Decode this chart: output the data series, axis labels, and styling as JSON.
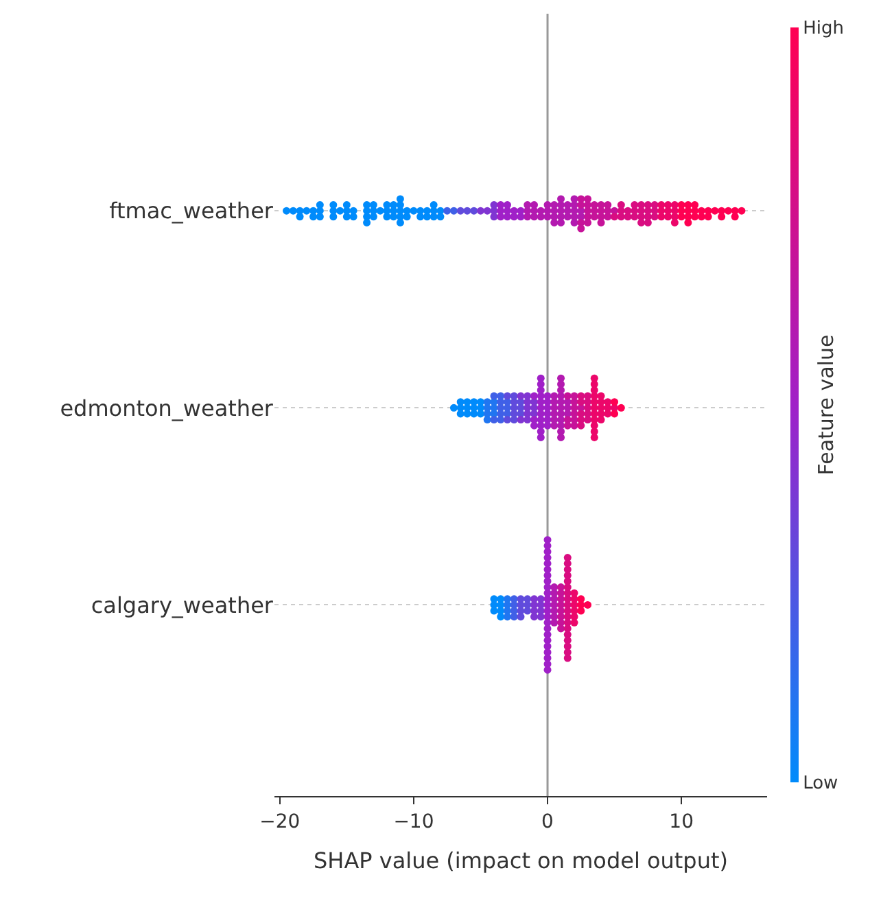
{
  "chart_data": {
    "type": "scatter",
    "orientation": "horizontal",
    "categories": [
      "ftmac_weather",
      "edmonton_weather",
      "calgary_weather"
    ],
    "xlabel": "SHAP value (impact on model output)",
    "clabel": "Feature value",
    "xlim": [
      -20.4,
      16.4
    ],
    "xticks": [
      -20,
      -10,
      0,
      10
    ],
    "clim": [
      0,
      1
    ],
    "cticks": [
      {
        "value": 0,
        "label": "Low"
      },
      {
        "value": 1,
        "label": "High"
      }
    ],
    "grid": "y",
    "marker": "circle",
    "ref_lines": [
      {
        "axis": "x",
        "value": 0,
        "color": "#999999"
      }
    ],
    "series": [
      {
        "x": [
          "ftmac_weather",
          "ftmac_weather",
          "ftmac_weather",
          "ftmac_weather",
          "ftmac_weather",
          "ftmac_weather",
          "ftmac_weather",
          "ftmac_weather",
          "ftmac_weather",
          "ftmac_weather",
          "ftmac_weather",
          "ftmac_weather",
          "ftmac_weather",
          "ftmac_weather",
          "ftmac_weather",
          "ftmac_weather",
          "ftmac_weather",
          "ftmac_weather",
          "ftmac_weather",
          "ftmac_weather",
          "ftmac_weather",
          "ftmac_weather",
          "ftmac_weather",
          "ftmac_weather",
          "ftmac_weather",
          "ftmac_weather",
          "ftmac_weather",
          "ftmac_weather",
          "ftmac_weather",
          "ftmac_weather",
          "ftmac_weather",
          "ftmac_weather",
          "ftmac_weather",
          "ftmac_weather",
          "ftmac_weather",
          "ftmac_weather",
          "ftmac_weather",
          "ftmac_weather",
          "ftmac_weather",
          "ftmac_weather",
          "ftmac_weather",
          "ftmac_weather",
          "ftmac_weather",
          "ftmac_weather",
          "ftmac_weather",
          "ftmac_weather",
          "ftmac_weather",
          "ftmac_weather",
          "ftmac_weather",
          "ftmac_weather",
          "ftmac_weather",
          "ftmac_weather",
          "ftmac_weather",
          "ftmac_weather",
          "ftmac_weather",
          "ftmac_weather",
          "ftmac_weather",
          "ftmac_weather",
          "ftmac_weather",
          "ftmac_weather",
          "ftmac_weather",
          "ftmac_weather",
          "ftmac_weather",
          "ftmac_weather",
          "ftmac_weather",
          "ftmac_weather",
          "ftmac_weather",
          "ftmac_weather",
          "ftmac_weather",
          "ftmac_weather",
          "ftmac_weather",
          "ftmac_weather",
          "ftmac_weather",
          "ftmac_weather",
          "ftmac_weather",
          "ftmac_weather",
          "ftmac_weather",
          "ftmac_weather",
          "ftmac_weather",
          "ftmac_weather",
          "ftmac_weather",
          "ftmac_weather",
          "ftmac_weather",
          "ftmac_weather",
          "ftmac_weather",
          "ftmac_weather",
          "ftmac_weather",
          "ftmac_weather",
          "ftmac_weather",
          "ftmac_weather",
          "ftmac_weather",
          "ftmac_weather",
          "ftmac_weather",
          "ftmac_weather",
          "ftmac_weather",
          "ftmac_weather",
          "ftmac_weather",
          "ftmac_weather",
          "ftmac_weather",
          "ftmac_weather",
          "ftmac_weather",
          "ftmac_weather",
          "ftmac_weather",
          "ftmac_weather",
          "ftmac_weather",
          "ftmac_weather",
          "ftmac_weather",
          "ftmac_weather",
          "ftmac_weather",
          "ftmac_weather",
          "ftmac_weather",
          "ftmac_weather",
          "ftmac_weather",
          "ftmac_weather",
          "ftmac_weather",
          "ftmac_weather",
          "ftmac_weather",
          "ftmac_weather",
          "ftmac_weather",
          "ftmac_weather",
          "ftmac_weather",
          "ftmac_weather",
          "ftmac_weather",
          "ftmac_weather",
          "ftmac_weather",
          "ftmac_weather",
          "ftmac_weather",
          "ftmac_weather",
          "ftmac_weather",
          "ftmac_weather",
          "ftmac_weather",
          "ftmac_weather",
          "ftmac_weather",
          "ftmac_weather",
          "ftmac_weather",
          "ftmac_weather",
          "ftmac_weather",
          "ftmac_weather",
          "ftmac_weather",
          "ftmac_weather",
          "ftmac_weather",
          "ftmac_weather",
          "ftmac_weather",
          "ftmac_weather",
          "ftmac_weather",
          "ftmac_weather",
          "ftmac_weather",
          "ftmac_weather",
          "ftmac_weather",
          "ftmac_weather",
          "ftmac_weather",
          "ftmac_weather",
          "ftmac_weather",
          "ftmac_weather",
          "ftmac_weather",
          "ftmac_weather",
          "ftmac_weather",
          "ftmac_weather",
          "ftmac_weather",
          "ftmac_weather",
          "ftmac_weather",
          "ftmac_weather",
          "ftmac_weather",
          "ftmac_weather",
          "ftmac_weather",
          "ftmac_weather",
          "ftmac_weather",
          "ftmac_weather",
          "ftmac_weather",
          "ftmac_weather",
          "ftmac_weather"
        ],
        "values": [
          -19.5,
          -19,
          -18.5,
          -18.5,
          -18,
          -17.5,
          -17.5,
          -17,
          -17,
          -17,
          -16,
          -16,
          -16,
          -15.5,
          -15,
          -15,
          -15,
          -14.5,
          -14.5,
          -13.5,
          -13.5,
          -13.5,
          -13.5,
          -13,
          -13,
          -13,
          -12.5,
          -12,
          -12,
          -12,
          -11.5,
          -11.5,
          -11.5,
          -11,
          -11,
          -11,
          -11,
          -11,
          -10.5,
          -10.5,
          -10,
          -9.5,
          -9.5,
          -9,
          -9,
          -8.5,
          -8.5,
          -8.5,
          -8,
          -8,
          -7.5,
          -7,
          -6.5,
          -6,
          -5.5,
          -5,
          -4.5,
          -4,
          -4,
          -4,
          -3.5,
          -3.5,
          -3.5,
          -3,
          -3,
          -3,
          -2.5,
          -2.5,
          -2,
          -2,
          -1.5,
          -1.5,
          -1.5,
          -1,
          -1,
          -1,
          -0.5,
          -0.5,
          0,
          0,
          0,
          0.5,
          0.5,
          0.5,
          0.5,
          1,
          1,
          1,
          1,
          1,
          1.5,
          1.5,
          1.5,
          2,
          2,
          2,
          2,
          2,
          2.5,
          2.5,
          2.5,
          2.5,
          2.5,
          2.5,
          3,
          3,
          3,
          3,
          3,
          3.5,
          3.5,
          3.5,
          4,
          4,
          4,
          4,
          4.5,
          4.5,
          4.5,
          5,
          5,
          5.5,
          5.5,
          5.5,
          6,
          6,
          6.5,
          6.5,
          6.5,
          7,
          7,
          7,
          7,
          7.5,
          7.5,
          7.5,
          7.5,
          8,
          8,
          8,
          8.5,
          8.5,
          8.5,
          9,
          9,
          9,
          9.5,
          9.5,
          9.5,
          9.5,
          10,
          10,
          10,
          10.5,
          10.5,
          10.5,
          10.5,
          11,
          11,
          11,
          11.5,
          11.5,
          12,
          12,
          12.5,
          13,
          13,
          13.5,
          14,
          14,
          14.5
        ],
        "colors": [
          "#008bfb",
          "#008bfb",
          "#008bfb",
          "#008bfb",
          "#008bfb",
          "#008bfb",
          "#008bfb",
          "#008bfb",
          "#008bfb",
          "#008bfb",
          "#008bfb",
          "#008bfb",
          "#008bfb",
          "#008bfb",
          "#008bfb",
          "#008bfb",
          "#008bfb",
          "#008bfb",
          "#008bfb",
          "#008bfb",
          "#008bfb",
          "#008bfb",
          "#008bfb",
          "#008bfb",
          "#008bfb",
          "#008bfb",
          "#008bfb",
          "#008bfb",
          "#008bfb",
          "#008bfb",
          "#008bfb",
          "#008bfb",
          "#008bfb",
          "#008bfb",
          "#008bfb",
          "#008bfb",
          "#008bfb",
          "#008bfb",
          "#008bfb",
          "#008bfb",
          "#008bfb",
          "#008bfb",
          "#008bfb",
          "#008bfb",
          "#008bfb",
          "#008bfb",
          "#008bfb",
          "#008bfb",
          "#008bfb",
          "#008bfb",
          "#4060e7",
          "#4060e7",
          "#604bdc",
          "#604bdc",
          "#604bdc",
          "#8035d2",
          "#8035d2",
          "#8035d2",
          "#8035d2",
          "#8035d2",
          "#a020c8",
          "#a020c8",
          "#a020c8",
          "#a020c8",
          "#a020c8",
          "#a020c8",
          "#a020c8",
          "#a020c8",
          "#a020c8",
          "#a020c8",
          "#b31ab0",
          "#b31ab0",
          "#b31ab0",
          "#b31ab0",
          "#b31ab0",
          "#b31ab0",
          "#b31ab0",
          "#b31ab0",
          "#b31ab0",
          "#b31ab0",
          "#b31ab0",
          "#b31ab0",
          "#b31ab0",
          "#b31ab0",
          "#b31ab0",
          "#b31ab0",
          "#b31ab0",
          "#b31ab0",
          "#b31ab0",
          "#b31ab0",
          "#b31ab0",
          "#b31ab0",
          "#b31ab0",
          "#b31ab0",
          "#b31ab0",
          "#b31ab0",
          "#b31ab0",
          "#b31ab0",
          "#b31ab0",
          "#b31ab0",
          "#c61399",
          "#c61399",
          "#c61399",
          "#c61399",
          "#c61399",
          "#c61399",
          "#c61399",
          "#c61399",
          "#c61399",
          "#c61399",
          "#c61399",
          "#c61399",
          "#c61399",
          "#c61399",
          "#c61399",
          "#c61399",
          "#c61399",
          "#c61399",
          "#c61399",
          "#c61399",
          "#d90d81",
          "#d90d81",
          "#d90d81",
          "#d90d81",
          "#d90d81",
          "#d90d81",
          "#d90d81",
          "#d90d81",
          "#d90d81",
          "#d90d81",
          "#d90d81",
          "#d90d81",
          "#d90d81",
          "#d90d81",
          "#d90d81",
          "#d90d81",
          "#d90d81",
          "#d90d81",
          "#d90d81",
          "#d90d81",
          "#ec066a",
          "#ec066a",
          "#ec066a",
          "#ec066a",
          "#ec066a",
          "#ec066a",
          "#ec066a",
          "#ec066a",
          "#ec066a",
          "#ec066a",
          "#ff0052",
          "#ff0052",
          "#ff0052",
          "#ff0052",
          "#ff0052",
          "#ff0052",
          "#ff0052",
          "#ff0052",
          "#ff0052",
          "#ff0052",
          "#ff0052",
          "#ff0052",
          "#ff0052",
          "#ff0052",
          "#ff0052",
          "#ff0052",
          "#ff0052",
          "#ff0052",
          "#ff0052",
          "#ff0052",
          "#ff0052"
        ],
        "cvalues": [
          0,
          0,
          0,
          0,
          0,
          0,
          0,
          0,
          0,
          0,
          0,
          0,
          0,
          0,
          0,
          0,
          0,
          0,
          0,
          0,
          0,
          0,
          0,
          0,
          0,
          0,
          0,
          0,
          0,
          0,
          0,
          0,
          0,
          0,
          0,
          0,
          0,
          0,
          0,
          0,
          0,
          0,
          0,
          0,
          0,
          0,
          0,
          0,
          0,
          0,
          0.2,
          0.2,
          0.3,
          0.3,
          0.3,
          0.4,
          0.4,
          0.4,
          0.4,
          0.4,
          0.5,
          0.5,
          0.5,
          0.5,
          0.5,
          0.5,
          0.5,
          0.5,
          0.5,
          0.5,
          0.6,
          0.6,
          0.6,
          0.6,
          0.6,
          0.6,
          0.6,
          0.6,
          0.6,
          0.6,
          0.6,
          0.6,
          0.6,
          0.6,
          0.6,
          0.6,
          0.6,
          0.6,
          0.6,
          0.6,
          0.6,
          0.6,
          0.6,
          0.6,
          0.6,
          0.6,
          0.6,
          0.6,
          0.6,
          0.6,
          0.7,
          0.7,
          0.7,
          0.7,
          0.7,
          0.7,
          0.7,
          0.7,
          0.7,
          0.7,
          0.7,
          0.7,
          0.7,
          0.7,
          0.7,
          0.7,
          0.7,
          0.7,
          0.7,
          0.7,
          0.8,
          0.8,
          0.8,
          0.8,
          0.8,
          0.8,
          0.8,
          0.8,
          0.8,
          0.8,
          0.8,
          0.8,
          0.8,
          0.8,
          0.8,
          0.8,
          0.8,
          0.8,
          0.8,
          0.8,
          0.9,
          0.9,
          0.9,
          0.9,
          0.9,
          0.9,
          0.9,
          0.9,
          0.9,
          0.9,
          1,
          1,
          1,
          1,
          1,
          1,
          1,
          1,
          1,
          1,
          1,
          1,
          1,
          1,
          1,
          1,
          1,
          1,
          1,
          1,
          1
        ]
      },
      {
        "x": [
          "edmonton_weather",
          "edmonton_weather",
          "edmonton_weather",
          "edmonton_weather",
          "edmonton_weather",
          "edmonton_weather",
          "edmonton_weather",
          "edmonton_weather",
          "edmonton_weather",
          "edmonton_weather",
          "edmonton_weather",
          "edmonton_weather",
          "edmonton_weather",
          "edmonton_weather",
          "edmonton_weather",
          "edmonton_weather",
          "edmonton_weather",
          "edmonton_weather",
          "edmonton_weather",
          "edmonton_weather",
          "edmonton_weather",
          "edmonton_weather",
          "edmonton_weather",
          "edmonton_weather",
          "edmonton_weather",
          "edmonton_weather",
          "edmonton_weather",
          "edmonton_weather",
          "edmonton_weather",
          "edmonton_weather",
          "edmonton_weather",
          "edmonton_weather",
          "edmonton_weather",
          "edmonton_weather",
          "edmonton_weather",
          "edmonton_weather",
          "edmonton_weather",
          "edmonton_weather",
          "edmonton_weather",
          "edmonton_weather",
          "edmonton_weather",
          "edmonton_weather",
          "edmonton_weather",
          "edmonton_weather",
          "edmonton_weather",
          "edmonton_weather",
          "edmonton_weather",
          "edmonton_weather",
          "edmonton_weather",
          "edmonton_weather",
          "edmonton_weather",
          "edmonton_weather",
          "edmonton_weather",
          "edmonton_weather",
          "edmonton_weather",
          "edmonton_weather",
          "edmonton_weather",
          "edmonton_weather",
          "edmonton_weather",
          "edmonton_weather",
          "edmonton_weather",
          "edmonton_weather",
          "edmonton_weather",
          "edmonton_weather",
          "edmonton_weather",
          "edmonton_weather",
          "edmonton_weather",
          "edmonton_weather",
          "edmonton_weather",
          "edmonton_weather",
          "edmonton_weather",
          "edmonton_weather",
          "edmonton_weather",
          "edmonton_weather",
          "edmonton_weather",
          "edmonton_weather",
          "edmonton_weather",
          "edmonton_weather",
          "edmonton_weather",
          "edmonton_weather",
          "edmonton_weather",
          "edmonton_weather",
          "edmonton_weather",
          "edmonton_weather",
          "edmonton_weather",
          "edmonton_weather",
          "edmonton_weather",
          "edmonton_weather",
          "edmonton_weather",
          "edmonton_weather",
          "edmonton_weather",
          "edmonton_weather",
          "edmonton_weather",
          "edmonton_weather",
          "edmonton_weather",
          "edmonton_weather",
          "edmonton_weather",
          "edmonton_weather",
          "edmonton_weather",
          "edmonton_weather",
          "edmonton_weather",
          "edmonton_weather",
          "edmonton_weather",
          "edmonton_weather",
          "edmonton_weather",
          "edmonton_weather",
          "edmonton_weather",
          "edmonton_weather",
          "edmonton_weather",
          "edmonton_weather",
          "edmonton_weather",
          "edmonton_weather",
          "edmonton_weather",
          "edmonton_weather",
          "edmonton_weather",
          "edmonton_weather",
          "edmonton_weather",
          "edmonton_weather",
          "edmonton_weather",
          "edmonton_weather",
          "edmonton_weather",
          "edmonton_weather",
          "edmonton_weather",
          "edmonton_weather",
          "edmonton_weather",
          "edmonton_weather",
          "edmonton_weather",
          "edmonton_weather",
          "edmonton_weather",
          "edmonton_weather",
          "edmonton_weather",
          "edmonton_weather",
          "edmonton_weather"
        ],
        "values": [
          -7,
          -6.5,
          -6.5,
          -6.5,
          -6,
          -6,
          -6,
          -5.5,
          -5.5,
          -5.5,
          -5,
          -5,
          -5,
          -4.5,
          -4.5,
          -4.5,
          -4.5,
          -4,
          -4,
          -4,
          -4,
          -4,
          -3.5,
          -3.5,
          -3.5,
          -3.5,
          -3.5,
          -3,
          -3,
          -3,
          -3,
          -3,
          -2.5,
          -2.5,
          -2.5,
          -2.5,
          -2.5,
          -2,
          -2,
          -2,
          -2,
          -2,
          -1.5,
          -1.5,
          -1.5,
          -1.5,
          -1.5,
          -1,
          -1,
          -1,
          -1,
          -1,
          -1,
          -0.5,
          -0.5,
          -0.5,
          -0.5,
          -0.5,
          -0.5,
          -0.5,
          -0.5,
          -0.5,
          -0.5,
          -0.5,
          0,
          0,
          0,
          0,
          0,
          0,
          0.5,
          0.5,
          0.5,
          0.5,
          0.5,
          0.5,
          1,
          1,
          1,
          1,
          1,
          1,
          1,
          1,
          1,
          1,
          1,
          1.5,
          1.5,
          1.5,
          1.5,
          1.5,
          1.5,
          2,
          2,
          2,
          2,
          2,
          2,
          2.5,
          2.5,
          2.5,
          2.5,
          2.5,
          2.5,
          3,
          3,
          3,
          3,
          3,
          3.5,
          3.5,
          3.5,
          3.5,
          3.5,
          3.5,
          3.5,
          3.5,
          3.5,
          3.5,
          3.5,
          4,
          4,
          4,
          4,
          4,
          4.5,
          4.5,
          4.5,
          5,
          5,
          5,
          5.5
        ],
        "colors": [
          "#008bfb",
          "#008bfb",
          "#008bfb",
          "#008bfb",
          "#008bfb",
          "#008bfb",
          "#008bfb",
          "#008bfb",
          "#008bfb",
          "#008bfb",
          "#008bfb",
          "#008bfb",
          "#008bfb",
          "#2076f1",
          "#2076f1",
          "#2076f1",
          "#2076f1",
          "#2076f1",
          "#2076f1",
          "#2076f1",
          "#4060e7",
          "#4060e7",
          "#4060e7",
          "#4060e7",
          "#4060e7",
          "#4060e7",
          "#4060e7",
          "#4060e7",
          "#4060e7",
          "#4060e7",
          "#604bdc",
          "#604bdc",
          "#604bdc",
          "#604bdc",
          "#604bdc",
          "#604bdc",
          "#604bdc",
          "#604bdc",
          "#604bdc",
          "#604bdc",
          "#8035d2",
          "#8035d2",
          "#8035d2",
          "#8035d2",
          "#8035d2",
          "#8035d2",
          "#8035d2",
          "#8035d2",
          "#8035d2",
          "#8035d2",
          "#a020c8",
          "#a020c8",
          "#a020c8",
          "#a020c8",
          "#a020c8",
          "#a020c8",
          "#a020c8",
          "#a020c8",
          "#a020c8",
          "#a020c8",
          "#a020c8",
          "#a020c8",
          "#a020c8",
          "#a020c8",
          "#a020c8",
          "#a020c8",
          "#a020c8",
          "#a020c8",
          "#a020c8",
          "#a020c8",
          "#b31ab0",
          "#b31ab0",
          "#b31ab0",
          "#b31ab0",
          "#b31ab0",
          "#b31ab0",
          "#b31ab0",
          "#b31ab0",
          "#b31ab0",
          "#b31ab0",
          "#b31ab0",
          "#b31ab0",
          "#b31ab0",
          "#b31ab0",
          "#b31ab0",
          "#b31ab0",
          "#b31ab0",
          "#b31ab0",
          "#b31ab0",
          "#b31ab0",
          "#c61399",
          "#c61399",
          "#c61399",
          "#c61399",
          "#c61399",
          "#c61399",
          "#c61399",
          "#c61399",
          "#c61399",
          "#c61399",
          "#d90d81",
          "#d90d81",
          "#d90d81",
          "#d90d81",
          "#d90d81",
          "#d90d81",
          "#d90d81",
          "#d90d81",
          "#d90d81",
          "#d90d81",
          "#ec066a",
          "#ec066a",
          "#ec066a",
          "#ec066a",
          "#ec066a",
          "#ec066a",
          "#ec066a",
          "#ec066a",
          "#ec066a",
          "#ec066a",
          "#ec066a",
          "#ec066a",
          "#ec066a",
          "#ec066a",
          "#ec066a",
          "#ec066a",
          "#ec066a",
          "#ec066a",
          "#ec066a",
          "#ec066a",
          "#ff0052",
          "#ff0052",
          "#ff0052"
        ],
        "cvalues": [
          0,
          0,
          0,
          0,
          0,
          0,
          0,
          0,
          0,
          0,
          0,
          0,
          0,
          0.1,
          0.1,
          0.1,
          0.1,
          0.1,
          0.1,
          0.1,
          0.2,
          0.2,
          0.2,
          0.2,
          0.2,
          0.2,
          0.2,
          0.2,
          0.2,
          0.2,
          0.3,
          0.3,
          0.3,
          0.3,
          0.3,
          0.3,
          0.3,
          0.3,
          0.3,
          0.3,
          0.4,
          0.4,
          0.4,
          0.4,
          0.4,
          0.4,
          0.4,
          0.4,
          0.4,
          0.4,
          0.5,
          0.5,
          0.5,
          0.5,
          0.5,
          0.5,
          0.5,
          0.5,
          0.5,
          0.5,
          0.5,
          0.5,
          0.5,
          0.5,
          0.5,
          0.5,
          0.5,
          0.5,
          0.5,
          0.5,
          0.6,
          0.6,
          0.6,
          0.6,
          0.6,
          0.6,
          0.6,
          0.6,
          0.6,
          0.6,
          0.6,
          0.6,
          0.6,
          0.6,
          0.6,
          0.6,
          0.6,
          0.6,
          0.6,
          0.6,
          0.7,
          0.7,
          0.7,
          0.7,
          0.7,
          0.7,
          0.7,
          0.7,
          0.7,
          0.7,
          0.8,
          0.8,
          0.8,
          0.8,
          0.8,
          0.8,
          0.8,
          0.8,
          0.8,
          0.8,
          0.9,
          0.9,
          0.9,
          0.9,
          0.9,
          0.9,
          0.9,
          0.9,
          0.9,
          0.9,
          0.9,
          0.9,
          0.9,
          0.9,
          0.9,
          0.9,
          0.9,
          0.9,
          0.9,
          0.9,
          1,
          1,
          1
        ]
      },
      {
        "x": [
          "calgary_weather",
          "calgary_weather",
          "calgary_weather",
          "calgary_weather",
          "calgary_weather",
          "calgary_weather",
          "calgary_weather",
          "calgary_weather",
          "calgary_weather",
          "calgary_weather",
          "calgary_weather",
          "calgary_weather",
          "calgary_weather",
          "calgary_weather",
          "calgary_weather",
          "calgary_weather",
          "calgary_weather",
          "calgary_weather",
          "calgary_weather",
          "calgary_weather",
          "calgary_weather",
          "calgary_weather",
          "calgary_weather",
          "calgary_weather",
          "calgary_weather",
          "calgary_weather",
          "calgary_weather",
          "calgary_weather",
          "calgary_weather",
          "calgary_weather",
          "calgary_weather",
          "calgary_weather",
          "calgary_weather",
          "calgary_weather",
          "calgary_weather",
          "calgary_weather",
          "calgary_weather",
          "calgary_weather",
          "calgary_weather",
          "calgary_weather",
          "calgary_weather",
          "calgary_weather",
          "calgary_weather",
          "calgary_weather",
          "calgary_weather",
          "calgary_weather",
          "calgary_weather",
          "calgary_weather",
          "calgary_weather",
          "calgary_weather",
          "calgary_weather",
          "calgary_weather",
          "calgary_weather",
          "calgary_weather",
          "calgary_weather",
          "calgary_weather",
          "calgary_weather",
          "calgary_weather",
          "calgary_weather",
          "calgary_weather",
          "calgary_weather",
          "calgary_weather",
          "calgary_weather",
          "calgary_weather",
          "calgary_weather",
          "calgary_weather",
          "calgary_weather",
          "calgary_weather",
          "calgary_weather",
          "calgary_weather",
          "calgary_weather",
          "calgary_weather",
          "calgary_weather",
          "calgary_weather",
          "calgary_weather",
          "calgary_weather",
          "calgary_weather",
          "calgary_weather",
          "calgary_weather",
          "calgary_weather",
          "calgary_weather",
          "calgary_weather",
          "calgary_weather",
          "calgary_weather",
          "calgary_weather",
          "calgary_weather",
          "calgary_weather",
          "calgary_weather",
          "calgary_weather",
          "calgary_weather",
          "calgary_weather",
          "calgary_weather",
          "calgary_weather",
          "calgary_weather",
          "calgary_weather",
          "calgary_weather"
        ],
        "values": [
          -4,
          -4,
          -4,
          -3.5,
          -3.5,
          -3.5,
          -3.5,
          -3,
          -3,
          -3,
          -3,
          -2.5,
          -2.5,
          -2.5,
          -2.5,
          -2,
          -2,
          -2,
          -2,
          -1.5,
          -1.5,
          -1.5,
          -1,
          -1,
          -1,
          -1,
          -0.5,
          -0.5,
          -0.5,
          -0.5,
          0,
          0,
          0,
          0,
          0,
          0,
          0,
          0,
          0,
          0,
          0,
          0,
          0,
          0,
          0,
          0,
          0,
          0,
          0,
          0,
          0,
          0,
          0,
          0.5,
          0.5,
          0.5,
          0.5,
          0.5,
          0.5,
          0.5,
          1,
          1,
          1,
          1,
          1,
          1,
          1,
          1,
          1.5,
          1.5,
          1.5,
          1.5,
          1.5,
          1.5,
          1.5,
          1.5,
          1.5,
          1.5,
          1.5,
          1.5,
          1.5,
          1.5,
          1.5,
          1.5,
          1.5,
          1.5,
          2,
          2,
          2,
          2,
          2,
          2,
          2.5,
          2.5,
          2.5,
          3
        ],
        "colors": [
          "#008bfb",
          "#008bfb",
          "#008bfb",
          "#008bfb",
          "#008bfb",
          "#008bfb",
          "#008bfb",
          "#2076f1",
          "#2076f1",
          "#2076f1",
          "#2076f1",
          "#4060e7",
          "#4060e7",
          "#4060e7",
          "#4060e7",
          "#604bdc",
          "#604bdc",
          "#604bdc",
          "#604bdc",
          "#604bdc",
          "#604bdc",
          "#604bdc",
          "#8035d2",
          "#8035d2",
          "#8035d2",
          "#8035d2",
          "#8035d2",
          "#8035d2",
          "#8035d2",
          "#8035d2",
          "#a020c8",
          "#a020c8",
          "#a020c8",
          "#a020c8",
          "#a020c8",
          "#a020c8",
          "#a020c8",
          "#a020c8",
          "#a020c8",
          "#a020c8",
          "#a020c8",
          "#a020c8",
          "#a020c8",
          "#a020c8",
          "#a020c8",
          "#a020c8",
          "#a020c8",
          "#a020c8",
          "#a020c8",
          "#a020c8",
          "#a020c8",
          "#a020c8",
          "#a020c8",
          "#b31ab0",
          "#b31ab0",
          "#b31ab0",
          "#b31ab0",
          "#b31ab0",
          "#b31ab0",
          "#b31ab0",
          "#c61399",
          "#c61399",
          "#c61399",
          "#c61399",
          "#c61399",
          "#c61399",
          "#c61399",
          "#c61399",
          "#d90d81",
          "#d90d81",
          "#d90d81",
          "#d90d81",
          "#d90d81",
          "#d90d81",
          "#d90d81",
          "#d90d81",
          "#d90d81",
          "#d90d81",
          "#d90d81",
          "#d90d81",
          "#d90d81",
          "#d90d81",
          "#d90d81",
          "#d90d81",
          "#d90d81",
          "#d90d81",
          "#ec066a",
          "#ec066a",
          "#ec066a",
          "#ec066a",
          "#ec066a",
          "#ec066a",
          "#ff0052",
          "#ff0052",
          "#ff0052",
          "#ff0052"
        ],
        "cvalues": [
          0,
          0,
          0,
          0,
          0,
          0,
          0,
          0.1,
          0.1,
          0.1,
          0.1,
          0.2,
          0.2,
          0.2,
          0.2,
          0.3,
          0.3,
          0.3,
          0.3,
          0.3,
          0.3,
          0.3,
          0.4,
          0.4,
          0.4,
          0.4,
          0.4,
          0.4,
          0.4,
          0.4,
          0.5,
          0.5,
          0.5,
          0.5,
          0.5,
          0.5,
          0.5,
          0.5,
          0.5,
          0.5,
          0.5,
          0.5,
          0.5,
          0.5,
          0.5,
          0.5,
          0.5,
          0.5,
          0.5,
          0.5,
          0.5,
          0.5,
          0.5,
          0.6,
          0.6,
          0.6,
          0.6,
          0.6,
          0.6,
          0.6,
          0.7,
          0.7,
          0.7,
          0.7,
          0.7,
          0.7,
          0.7,
          0.7,
          0.8,
          0.8,
          0.8,
          0.8,
          0.8,
          0.8,
          0.8,
          0.8,
          0.8,
          0.8,
          0.8,
          0.8,
          0.8,
          0.8,
          0.8,
          0.8,
          0.8,
          0.8,
          0.9,
          0.9,
          0.9,
          0.9,
          0.9,
          0.9,
          1,
          1,
          1,
          1
        ]
      }
    ]
  }
}
